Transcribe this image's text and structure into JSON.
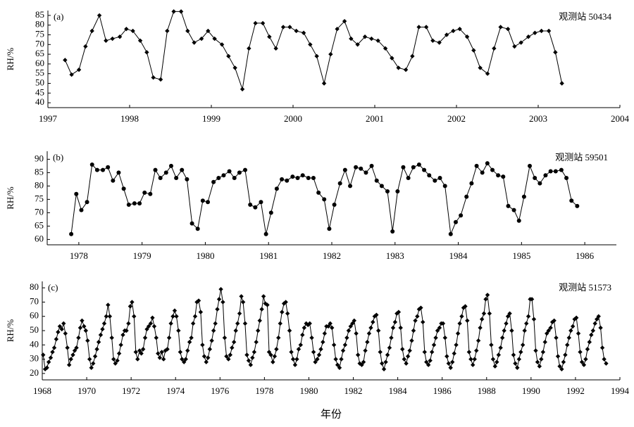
{
  "chart_data": [
    {
      "type": "line",
      "panel_label": "(a)",
      "annotation": "观测站 50434",
      "ylabel": "RH/%",
      "color": "#000000",
      "marker": "diamond",
      "xlim": [
        1997,
        2004
      ],
      "xticks": [
        1997,
        1998,
        1999,
        2000,
        2001,
        2002,
        2003,
        2004
      ],
      "ylim": [
        37.5,
        87.5
      ],
      "yticks": [
        40,
        45,
        50,
        55,
        60,
        65,
        70,
        75,
        80,
        85
      ],
      "x": [
        1997.21,
        1997.29,
        1997.38,
        1997.46,
        1997.54,
        1997.63,
        1997.71,
        1997.79,
        1997.88,
        1997.96,
        1998.04,
        1998.13,
        1998.21,
        1998.29,
        1998.38,
        1998.46,
        1998.54,
        1998.63,
        1998.71,
        1998.79,
        1998.88,
        1998.96,
        1999.04,
        1999.13,
        1999.21,
        1999.29,
        1999.38,
        1999.46,
        1999.54,
        1999.63,
        1999.71,
        1999.79,
        1999.88,
        1999.96,
        2000.04,
        2000.13,
        2000.21,
        2000.29,
        2000.38,
        2000.46,
        2000.54,
        2000.63,
        2000.71,
        2000.79,
        2000.88,
        2000.96,
        2001.04,
        2001.13,
        2001.21,
        2001.29,
        2001.38,
        2001.46,
        2001.54,
        2001.63,
        2001.71,
        2001.79,
        2001.88,
        2001.96,
        2002.04,
        2002.13,
        2002.21,
        2002.29,
        2002.38,
        2002.46,
        2002.54,
        2002.63,
        2002.71,
        2002.79,
        2002.88,
        2002.96,
        2003.04,
        2003.13,
        2003.21,
        2003.29
      ],
      "values": [
        62,
        54.5,
        57,
        69,
        77,
        85,
        72,
        73,
        74,
        78,
        77,
        72,
        66,
        53,
        52,
        77,
        87,
        87,
        77,
        71,
        73,
        77,
        73,
        70,
        64,
        58,
        47,
        68,
        81,
        81,
        74,
        68,
        79,
        79,
        77,
        76,
        70,
        64,
        50,
        65,
        78,
        82,
        73,
        70,
        74,
        73,
        72,
        68,
        63,
        58,
        57,
        64,
        79,
        79,
        72,
        71,
        75,
        77,
        78,
        74,
        67,
        58,
        55,
        68,
        79,
        78,
        69,
        71,
        74,
        76,
        77,
        77,
        66,
        50
      ]
    },
    {
      "type": "line",
      "panel_label": "(b)",
      "annotation": "观测站 59501",
      "ylabel": "RH/%",
      "color": "#000000",
      "marker": "circle",
      "xlim": [
        1977.5,
        1986.5
      ],
      "xticks": [
        1978,
        1979,
        1980,
        1981,
        1982,
        1983,
        1984,
        1985,
        1986
      ],
      "ylim": [
        58,
        93
      ],
      "yticks": [
        60,
        65,
        70,
        75,
        80,
        85,
        90
      ],
      "x": [
        1977.88,
        1977.96,
        1978.04,
        1978.13,
        1978.21,
        1978.29,
        1978.38,
        1978.46,
        1978.54,
        1978.63,
        1978.71,
        1978.79,
        1978.88,
        1978.96,
        1979.04,
        1979.13,
        1979.21,
        1979.29,
        1979.38,
        1979.46,
        1979.54,
        1979.63,
        1979.71,
        1979.79,
        1979.88,
        1979.96,
        1980.04,
        1980.13,
        1980.21,
        1980.29,
        1980.38,
        1980.46,
        1980.54,
        1980.63,
        1980.71,
        1980.79,
        1980.88,
        1980.96,
        1981.04,
        1981.13,
        1981.21,
        1981.29,
        1981.38,
        1981.46,
        1981.54,
        1981.63,
        1981.71,
        1981.79,
        1981.88,
        1981.96,
        1982.04,
        1982.13,
        1982.21,
        1982.29,
        1982.38,
        1982.46,
        1982.54,
        1982.63,
        1982.71,
        1982.79,
        1982.88,
        1982.96,
        1983.04,
        1983.13,
        1983.21,
        1983.29,
        1983.38,
        1983.46,
        1983.54,
        1983.63,
        1983.71,
        1983.79,
        1983.88,
        1983.96,
        1984.04,
        1984.13,
        1984.21,
        1984.29,
        1984.38,
        1984.46,
        1984.54,
        1984.63,
        1984.71,
        1984.79,
        1984.88,
        1984.96,
        1985.04,
        1985.13,
        1985.21,
        1985.29,
        1985.38,
        1985.46,
        1985.54,
        1985.63,
        1985.71,
        1985.79,
        1985.88
      ],
      "values": [
        62,
        77,
        71,
        74,
        88,
        86,
        86,
        87,
        82,
        85,
        79,
        73,
        73.5,
        73.5,
        77.5,
        77,
        86,
        83,
        85,
        87.5,
        83,
        86,
        82.5,
        66,
        64,
        74.5,
        74,
        81.5,
        83,
        84,
        85.5,
        83,
        85,
        86,
        73,
        72,
        74,
        62,
        70,
        79,
        82.5,
        82,
        83.5,
        83,
        84,
        83,
        83,
        77.5,
        75,
        64,
        73,
        81,
        86,
        80,
        87,
        86.5,
        85,
        87.5,
        82,
        80,
        78,
        63,
        78,
        87,
        83,
        87,
        88,
        86,
        84,
        82,
        83,
        80,
        62,
        66.5,
        69,
        76,
        81,
        87.5,
        85,
        88.5,
        86,
        84,
        83.5,
        72.5,
        71,
        67,
        76,
        87.5,
        83,
        81,
        84,
        85.5,
        85.5,
        86,
        83,
        74.5,
        72.5
      ]
    },
    {
      "type": "line",
      "panel_label": "(c)",
      "annotation": "观测站 51573",
      "ylabel": "RH/%",
      "xlabel": "年份",
      "color": "#000000",
      "marker": "diamond",
      "xlim": [
        1968,
        1994
      ],
      "xticks": [
        1968,
        1970,
        1972,
        1974,
        1976,
        1978,
        1980,
        1982,
        1984,
        1986,
        1988,
        1990,
        1992,
        1994
      ],
      "ylim": [
        15.5,
        84.5
      ],
      "yticks": [
        20,
        30,
        40,
        50,
        60,
        70,
        80
      ],
      "x": [
        1968.04,
        1968.13,
        1968.21,
        1968.29,
        1968.38,
        1968.46,
        1968.54,
        1968.63,
        1968.71,
        1968.79,
        1968.88,
        1968.96,
        1969.04,
        1969.13,
        1969.21,
        1969.29,
        1969.38,
        1969.46,
        1969.54,
        1969.63,
        1969.71,
        1969.79,
        1969.88,
        1969.96,
        1970.04,
        1970.13,
        1970.21,
        1970.29,
        1970.38,
        1970.46,
        1970.54,
        1970.63,
        1970.71,
        1970.79,
        1970.88,
        1970.96,
        1971.04,
        1971.13,
        1971.21,
        1971.29,
        1971.38,
        1971.46,
        1971.54,
        1971.63,
        1971.71,
        1971.79,
        1971.88,
        1971.96,
        1972.04,
        1972.13,
        1972.21,
        1972.29,
        1972.38,
        1972.46,
        1972.54,
        1972.63,
        1972.71,
        1972.79,
        1972.88,
        1972.96,
        1973.04,
        1973.13,
        1973.21,
        1973.29,
        1973.38,
        1973.46,
        1973.54,
        1973.63,
        1973.71,
        1973.79,
        1973.88,
        1973.96,
        1974.04,
        1974.13,
        1974.21,
        1974.29,
        1974.38,
        1974.46,
        1974.54,
        1974.63,
        1974.71,
        1974.79,
        1974.88,
        1974.96,
        1975.04,
        1975.13,
        1975.21,
        1975.29,
        1975.38,
        1975.46,
        1975.54,
        1975.63,
        1975.71,
        1975.79,
        1975.88,
        1975.96,
        1976.04,
        1976.13,
        1976.21,
        1976.29,
        1976.38,
        1976.46,
        1976.54,
        1976.63,
        1976.71,
        1976.79,
        1976.88,
        1976.96,
        1977.04,
        1977.13,
        1977.21,
        1977.29,
        1977.38,
        1977.46,
        1977.54,
        1977.63,
        1977.71,
        1977.79,
        1977.88,
        1977.96,
        1978.04,
        1978.13,
        1978.21,
        1978.29,
        1978.38,
        1978.46,
        1978.54,
        1978.63,
        1978.71,
        1978.79,
        1978.88,
        1978.96,
        1979.04,
        1979.13,
        1979.21,
        1979.29,
        1979.38,
        1979.46,
        1979.54,
        1979.63,
        1979.71,
        1979.79,
        1979.88,
        1979.96,
        1980.04,
        1980.13,
        1980.21,
        1980.29,
        1980.38,
        1980.46,
        1980.54,
        1980.63,
        1980.71,
        1980.79,
        1980.88,
        1980.96,
        1981.04,
        1981.13,
        1981.21,
        1981.29,
        1981.38,
        1981.46,
        1981.54,
        1981.63,
        1981.71,
        1981.79,
        1981.88,
        1981.96,
        1982.04,
        1982.13,
        1982.21,
        1982.29,
        1982.38,
        1982.46,
        1982.54,
        1982.63,
        1982.71,
        1982.79,
        1982.88,
        1982.96,
        1983.04,
        1983.13,
        1983.21,
        1983.29,
        1983.38,
        1983.46,
        1983.54,
        1983.63,
        1983.71,
        1983.79,
        1983.88,
        1983.96,
        1984.04,
        1984.13,
        1984.21,
        1984.29,
        1984.38,
        1984.46,
        1984.54,
        1984.63,
        1984.71,
        1984.79,
        1984.88,
        1984.96,
        1985.04,
        1985.13,
        1985.21,
        1985.29,
        1985.38,
        1985.46,
        1985.54,
        1985.63,
        1985.71,
        1985.79,
        1985.88,
        1985.96,
        1986.04,
        1986.13,
        1986.21,
        1986.29,
        1986.38,
        1986.46,
        1986.54,
        1986.63,
        1986.71,
        1986.79,
        1986.88,
        1986.96,
        1987.04,
        1987.13,
        1987.21,
        1987.29,
        1987.38,
        1987.46,
        1987.54,
        1987.63,
        1987.71,
        1987.79,
        1987.88,
        1987.96,
        1988.04,
        1988.13,
        1988.21,
        1988.29,
        1988.38,
        1988.46,
        1988.54,
        1988.63,
        1988.71,
        1988.79,
        1988.88,
        1988.96,
        1989.04,
        1989.13,
        1989.21,
        1989.29,
        1989.38,
        1989.46,
        1989.54,
        1989.63,
        1989.71,
        1989.79,
        1989.88,
        1989.96,
        1990.04,
        1990.13,
        1990.21,
        1990.29,
        1990.38,
        1990.46,
        1990.54,
        1990.63,
        1990.71,
        1990.79,
        1990.88,
        1990.96,
        1991.04,
        1991.13,
        1991.21,
        1991.29,
        1991.38,
        1991.46,
        1991.54,
        1991.63,
        1991.71,
        1991.79,
        1991.88,
        1991.96,
        1992.04,
        1992.13,
        1992.21,
        1992.29,
        1992.38,
        1992.46,
        1992.54,
        1992.63,
        1992.71,
        1992.79,
        1992.88,
        1992.96,
        1993.04,
        1993.13,
        1993.21,
        1993.29,
        1993.38
      ],
      "values": [
        33,
        23,
        24,
        28,
        31,
        35,
        38,
        44,
        49,
        53,
        51,
        55,
        48,
        38,
        26,
        30,
        33,
        36,
        38,
        45,
        52,
        57,
        53,
        50,
        43,
        30,
        24,
        27,
        32,
        37,
        42,
        47,
        51,
        55,
        60,
        68,
        60,
        45,
        30,
        27,
        29,
        34,
        40,
        47,
        50,
        50,
        55,
        67,
        70,
        60,
        35,
        30,
        36,
        34,
        37,
        45,
        51,
        53,
        55,
        59,
        53,
        45,
        34,
        31,
        35,
        30,
        36,
        37,
        45,
        55,
        60,
        64,
        60,
        50,
        35,
        30,
        28,
        30,
        36,
        42,
        45,
        55,
        60,
        70,
        71,
        63,
        40,
        32,
        28,
        31,
        37,
        43,
        50,
        55,
        65,
        72,
        79,
        70,
        45,
        32,
        30,
        33,
        38,
        42,
        50,
        55,
        62,
        74,
        70,
        55,
        33,
        29,
        26,
        31,
        35,
        42,
        50,
        57,
        65,
        74,
        69,
        68,
        35,
        33,
        28,
        32,
        37,
        45,
        55,
        63,
        69,
        70,
        62,
        50,
        35,
        30,
        26,
        30,
        37,
        40,
        47,
        52,
        55,
        54,
        55,
        45,
        35,
        28,
        30,
        33,
        37,
        42,
        48,
        53,
        53,
        55,
        52,
        40,
        30,
        26,
        24,
        30,
        36,
        40,
        45,
        50,
        53,
        55,
        57,
        48,
        33,
        27,
        26,
        28,
        36,
        42,
        48,
        52,
        56,
        60,
        61,
        50,
        35,
        27,
        23,
        28,
        33,
        38,
        45,
        52,
        56,
        62,
        63,
        52,
        37,
        30,
        27,
        32,
        36,
        43,
        50,
        57,
        60,
        65,
        66,
        56,
        35,
        28,
        26,
        29,
        35,
        40,
        45,
        50,
        52,
        55,
        55,
        45,
        32,
        27,
        24,
        28,
        34,
        40,
        48,
        55,
        60,
        66,
        67,
        57,
        35,
        30,
        26,
        30,
        36,
        43,
        52,
        58,
        62,
        72,
        75,
        62,
        40,
        30,
        25,
        28,
        33,
        38,
        45,
        50,
        55,
        60,
        62,
        50,
        33,
        27,
        24,
        30,
        35,
        40,
        50,
        55,
        60,
        72,
        72,
        58,
        36,
        28,
        25,
        30,
        35,
        42,
        48,
        50,
        52,
        56,
        57,
        45,
        32,
        25,
        23,
        28,
        33,
        40,
        45,
        50,
        53,
        58,
        59,
        48,
        35,
        28,
        26,
        30,
        37,
        42,
        47,
        50,
        55,
        58,
        60,
        52,
        38,
        30,
        27
      ]
    }
  ]
}
